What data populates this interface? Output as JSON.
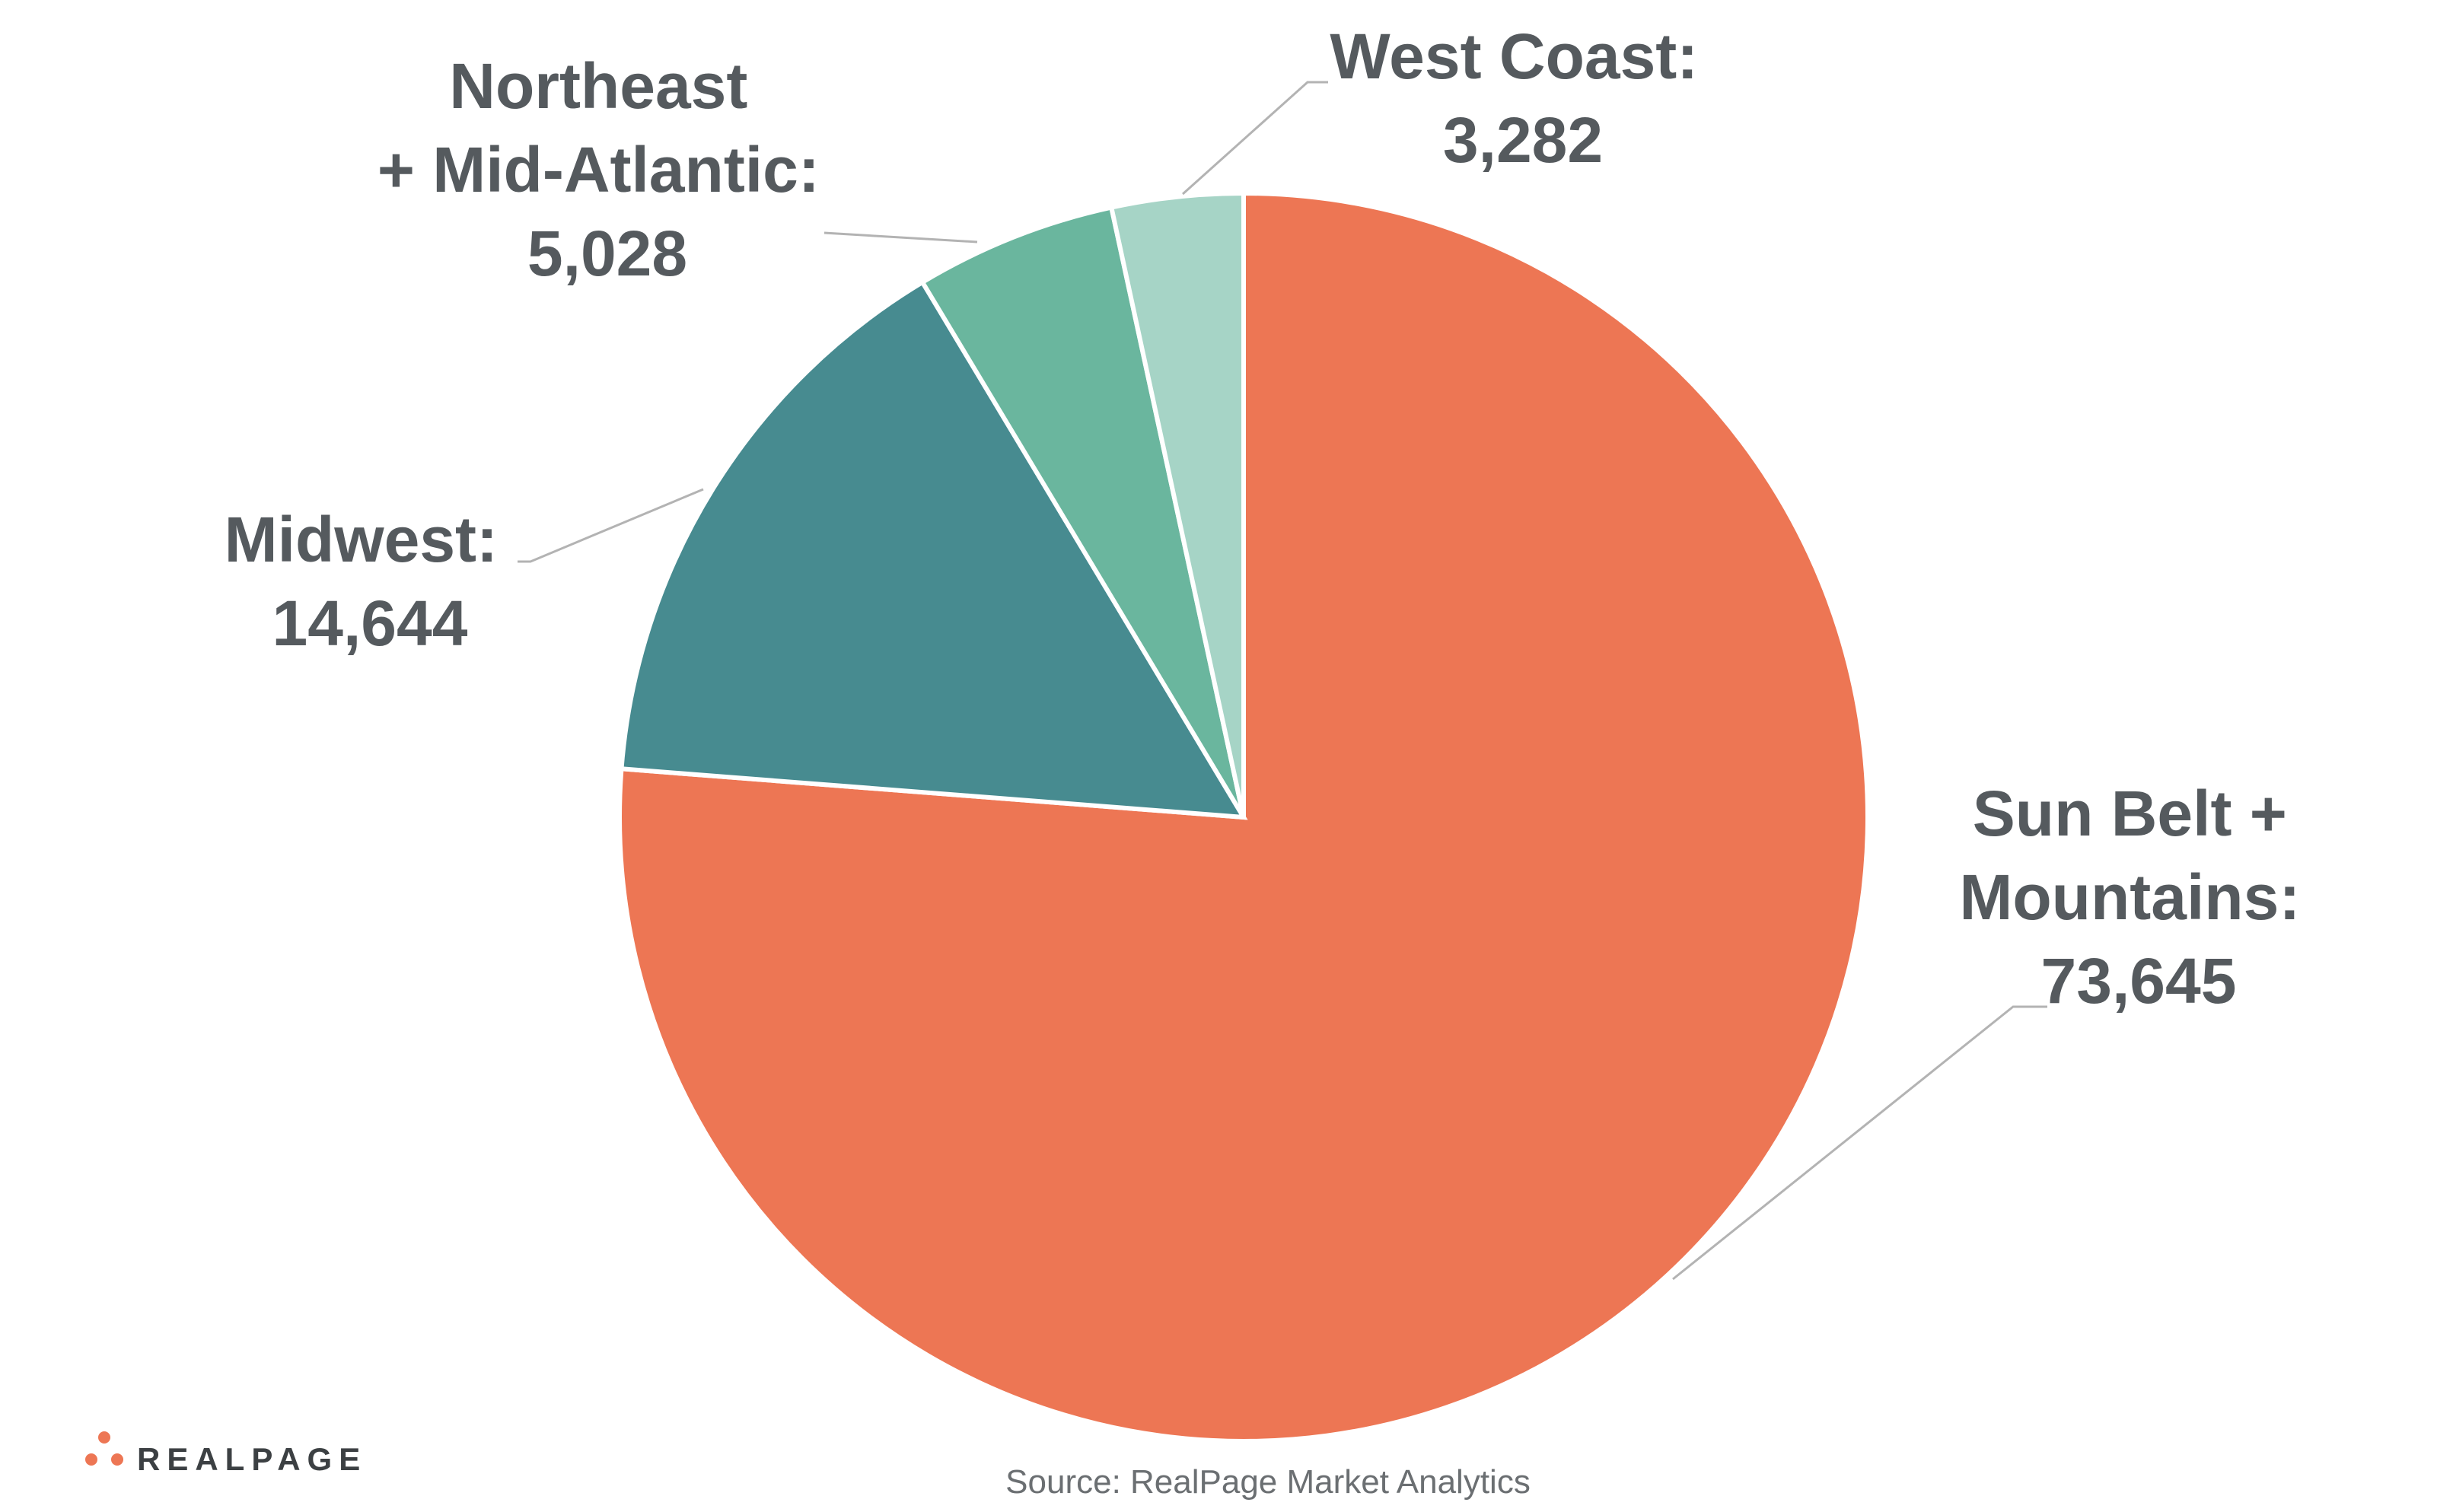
{
  "chart_data": {
    "type": "pie",
    "start_angle_deg": 0,
    "direction": "clockwise",
    "slices": [
      {
        "label_lines": [
          "Sun Belt +",
          "Mountains:",
          "73,645"
        ],
        "value": 73645,
        "color": "#ed7654"
      },
      {
        "label_lines": [
          "Midwest:",
          "14,644"
        ],
        "value": 14644,
        "color": "#478b90"
      },
      {
        "label_lines": [
          "Northeast",
          "+ Mid-Atlantic:",
          "5,028"
        ],
        "value": 5028,
        "color": "#6ab69e"
      },
      {
        "label_lines": [
          "West Coast:",
          "3,282"
        ],
        "value": 3282,
        "color": "#a6d4c6"
      }
    ]
  },
  "footer": {
    "source": "Source: RealPage Market Analytics",
    "logo_text": "REALPAGE",
    "logo_dot_color": "#ed7654"
  }
}
